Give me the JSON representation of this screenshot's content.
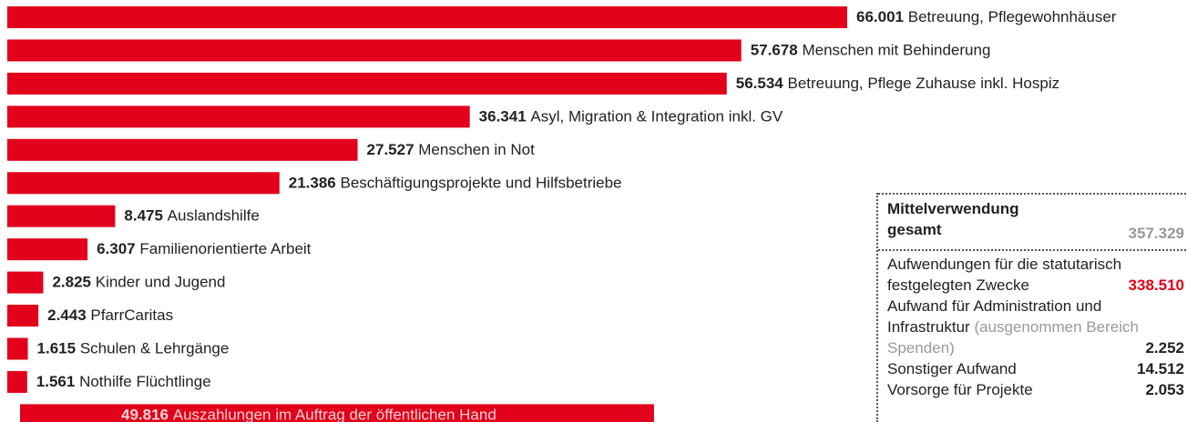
{
  "chart_data": {
    "type": "bar",
    "categories": [
      "Betreuung, Pflegewohnhäuser",
      "Menschen mit Behinderung",
      "Betreuung, Pflege Zuhause inkl. Hospiz",
      "Asyl, Migration & Integration inkl. GV",
      "Menschen in Not",
      "Beschäftigungsprojekte und Hilfsbetriebe",
      "Auslandshilfe",
      "Familienorientierte Arbeit",
      "Kinder und Jugend",
      "PfarrCaritas",
      "Schulen & Lehrgänge",
      "Nothilfe Flüchtlinge"
    ],
    "values": [
      66001,
      57678,
      56534,
      36341,
      27527,
      21386,
      8475,
      6307,
      2825,
      2443,
      1615,
      1561
    ],
    "value_labels": [
      "66.001",
      "57.678",
      "56.534",
      "36.341",
      "27.527",
      "21.386",
      "8.475",
      "6.307",
      "2.825",
      "2.443",
      "1.615",
      "1.561"
    ],
    "color": "#e2001a",
    "highlight": {
      "value": 49816,
      "value_label": "49.816",
      "label": "Auszahlungen im Auftrag der öffentlichen Hand"
    }
  },
  "summary": {
    "title": "Mittelverwendung gesamt",
    "total": "357.329",
    "items": [
      {
        "label": "Aufwendungen für die statutarisch festgelegten Zwecke",
        "value": "338.510"
      },
      {
        "label": "Aufwand für Administration und Infrastruktur",
        "note": "(ausgenommen Bereich Spenden)",
        "value": "2.252"
      },
      {
        "label": "Sonstiger Aufwand",
        "value": "14.512"
      },
      {
        "label": "Vorsorge für Projekte",
        "value": "2.053"
      }
    ]
  }
}
